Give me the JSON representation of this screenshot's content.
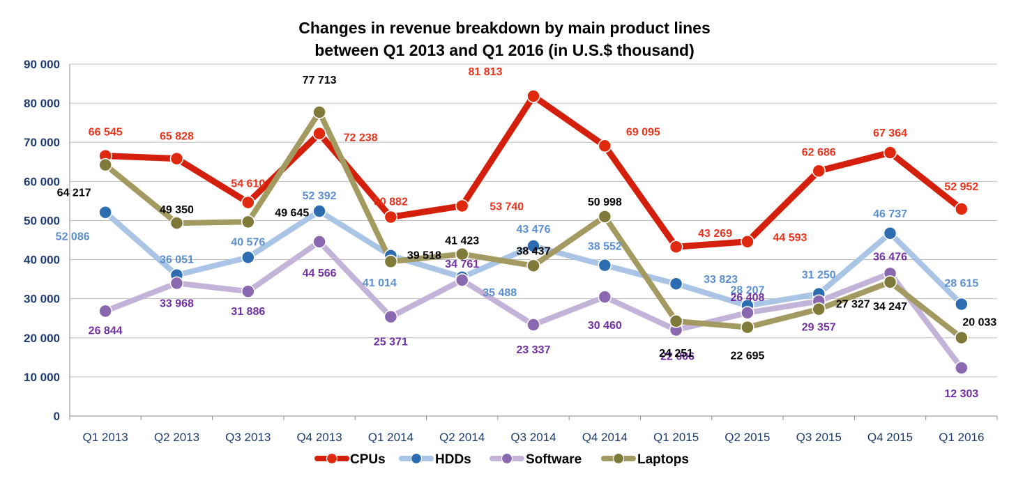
{
  "chart_data": {
    "type": "line",
    "title_lines": [
      "Changes in revenue breakdown by main product lines",
      "between Q1 2013 and Q1 2016 (in U.S.$ thousand)"
    ],
    "categories": [
      "Q1 2013",
      "Q2 2013",
      "Q3 2013",
      "Q4 2013",
      "Q1 2014",
      "Q2 2014",
      "Q3 2014",
      "Q4 2014",
      "Q1 2015",
      "Q2 2015",
      "Q3 2015",
      "Q4 2015",
      "Q1 2016"
    ],
    "ylim": [
      0,
      90000
    ],
    "ytick_labels": [
      "0",
      "10 000",
      "20 000",
      "30 000",
      "40 000",
      "50 000",
      "60 000",
      "70 000",
      "80 000",
      "90 000"
    ],
    "grid": true,
    "legend_position": "bottom",
    "series": [
      {
        "name": "CPUs",
        "color": "#e02a0f",
        "line_color": "#d41f0c",
        "label_color": "#e8341c",
        "values": [
          66545,
          65828,
          54610,
          72238,
          50882,
          53740,
          81813,
          69095,
          43269,
          44593,
          62686,
          67364,
          52952
        ],
        "labels": [
          "66 545",
          "65 828",
          "54 610",
          "72 238",
          "50 882",
          "53 740",
          "81 813",
          "69 095",
          "43 269",
          "44 593",
          "62 686",
          "67 364",
          "52 952"
        ]
      },
      {
        "name": "HDDs",
        "color": "#2c6cb0",
        "line_color": "#a9c4e4",
        "label_color": "#5b8fd0",
        "values": [
          52086,
          36051,
          40576,
          52392,
          41014,
          35488,
          43476,
          38552,
          33823,
          28207,
          31250,
          46737,
          28615
        ],
        "labels": [
          "52 086",
          "36 051",
          "40 576",
          "52 392",
          "41 014",
          "35 488",
          "43 476",
          "38 552",
          "33 823",
          "28 207",
          "31 250",
          "46 737",
          "28 615"
        ]
      },
      {
        "name": "Software",
        "color": "#8a68b0",
        "line_color": "#c4b3d8",
        "label_color": "#7030a0",
        "values": [
          26844,
          33968,
          31886,
          44566,
          25371,
          34761,
          23337,
          30460,
          22006,
          26408,
          29357,
          36476,
          12303
        ],
        "labels": [
          "26 844",
          "33 968",
          "31 886",
          "44 566",
          "25 371",
          "34 761",
          "23 337",
          "30 460",
          "22 006",
          "26 408",
          "29 357",
          "36 476",
          "12 303"
        ]
      },
      {
        "name": "Laptops",
        "color": "#7f7a3a",
        "line_color": "#a39a62",
        "label_color": "#000000",
        "values": [
          64217,
          49350,
          49645,
          77713,
          39518,
          41423,
          38437,
          50998,
          24251,
          22695,
          27327,
          34247,
          20033
        ],
        "labels": [
          "64 217",
          "49 350",
          "49 645",
          "77 713",
          "39 518",
          "41 423",
          "38 437",
          "50 998",
          "24 251",
          "22 695",
          "27 327",
          "34 247",
          "20 033"
        ]
      }
    ]
  }
}
